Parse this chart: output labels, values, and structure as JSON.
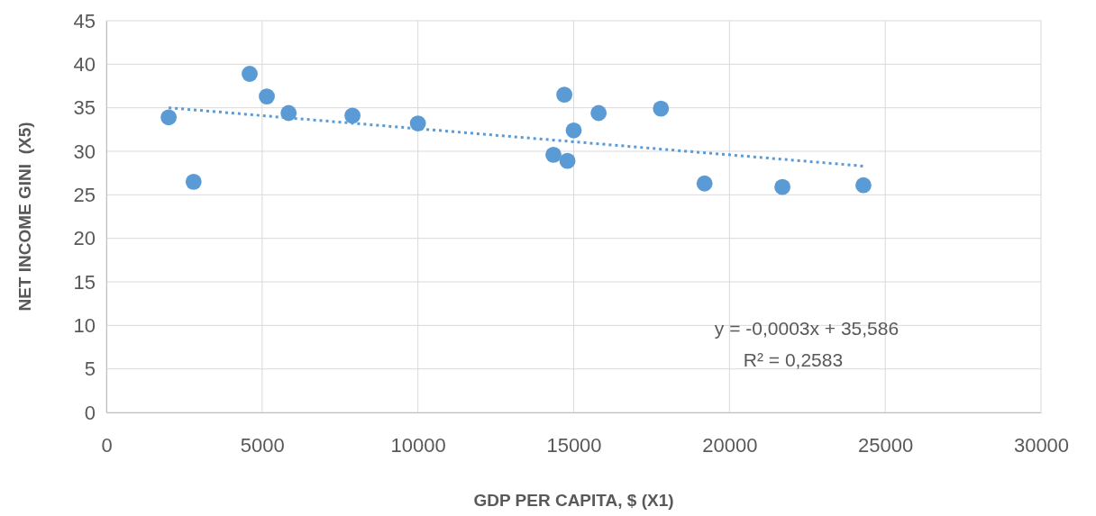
{
  "chart_data": {
    "type": "scatter",
    "xlabel": "GDP PER CAPITA, $ (X1)",
    "ylabel": "NET INCOME GINI  (X5)",
    "xlim": [
      0,
      30000
    ],
    "xticks": [
      0,
      5000,
      10000,
      15000,
      20000,
      25000,
      30000
    ],
    "ylim": [
      0,
      45
    ],
    "yticks": [
      0,
      5,
      10,
      15,
      20,
      25,
      30,
      35,
      40,
      45
    ],
    "grid": true,
    "series": [
      {
        "marker": "circle",
        "color": "#5b9bd5",
        "x": [
          2000,
          2800,
          4600,
          5150,
          5850,
          7900,
          10000,
          14350,
          14700,
          14800,
          15000,
          15800,
          17800,
          19200,
          21700,
          24300
        ],
        "values": [
          33.9,
          26.5,
          38.9,
          36.3,
          34.4,
          34.1,
          33.2,
          29.6,
          36.5,
          28.9,
          32.4,
          34.4,
          34.9,
          26.3,
          25.9,
          26.1
        ]
      },
      {
        "type": "line",
        "color": "#5b9bd5",
        "line_style": "dotted",
        "x": [
          2000,
          24300
        ],
        "values": [
          35.0,
          28.3
        ]
      }
    ],
    "annotations": [
      "y = -0,0003x + 35,586",
      "R² = 0,2583"
    ]
  }
}
